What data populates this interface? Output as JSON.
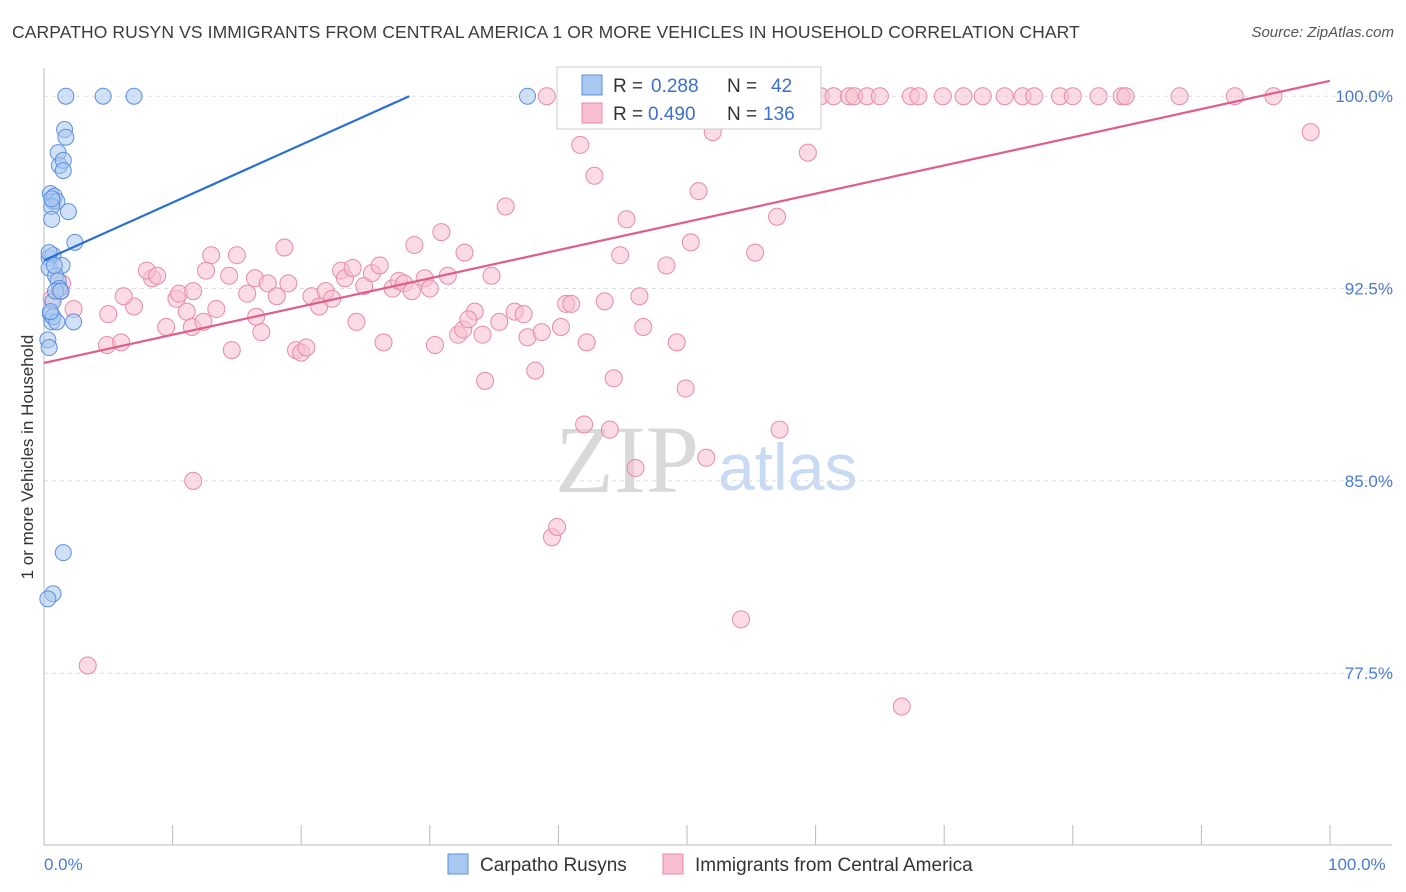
{
  "title": "CARPATHO RUSYN VS IMMIGRANTS FROM CENTRAL AMERICA 1 OR MORE VEHICLES IN HOUSEHOLD CORRELATION CHART",
  "source": "Source: ZipAtlas.com",
  "watermark": {
    "zip": "ZIP",
    "atlas": "atlas"
  },
  "colors": {
    "blue_fill": "#a9c8f0",
    "blue_stroke": "#5b8fe0",
    "blue_line": "#2a6fd6",
    "pink_fill": "#f7bfd0",
    "pink_stroke": "#e88aa8",
    "pink_line": "#e05c8c",
    "tick_text": "#4a7bd4",
    "grid": "#dddddd"
  },
  "legend_top": [
    {
      "series": "Carpatho Rusyns",
      "r_label": "R =",
      "r_value": "0.288",
      "n_label": "N =",
      "n_value": "42"
    },
    {
      "series": "Immigrants from Central America",
      "r_label": "R =",
      "r_value": "0.490",
      "n_label": "N =",
      "n_value": "136"
    }
  ],
  "chart_data": {
    "type": "scatter",
    "title": "CARPATHO RUSYN VS IMMIGRANTS FROM CENTRAL AMERICA 1 OR MORE VEHICLES IN HOUSEHOLD CORRELATION CHART",
    "xlabel": "",
    "ylabel": "1 or more Vehicles in Household",
    "xlim": [
      0,
      100
    ],
    "ylim": [
      70.8,
      101.1
    ],
    "y_ticks": [
      77.5,
      85.0,
      92.5,
      100.0
    ],
    "y_tick_labels": [
      "77.5%",
      "85.0%",
      "92.5%",
      "100.0%"
    ],
    "x_tick_labels": [
      "0.0%",
      "100.0%"
    ],
    "x_minor_ticks": [
      10,
      20,
      30,
      40,
      50,
      60,
      70,
      80,
      90,
      100
    ],
    "legend_position": "bottom",
    "series": [
      {
        "name": "Carpatho Rusyns",
        "color": "#a9c8f0",
        "trend": {
          "x": [
            0.0,
            28.4
          ],
          "y": [
            93.6,
            100.0
          ]
        },
        "points": [
          [
            1.7,
            100.0
          ],
          [
            4.6,
            100.0
          ],
          [
            7.0,
            100.0
          ],
          [
            37.6,
            100.0
          ],
          [
            1.6,
            98.7
          ],
          [
            1.7,
            98.4
          ],
          [
            1.1,
            97.8
          ],
          [
            1.2,
            97.3
          ],
          [
            1.5,
            97.5
          ],
          [
            1.5,
            97.1
          ],
          [
            0.5,
            96.2
          ],
          [
            0.7,
            95.9
          ],
          [
            0.8,
            96.1
          ],
          [
            1.0,
            95.9
          ],
          [
            0.6,
            95.7
          ],
          [
            1.9,
            95.5
          ],
          [
            0.6,
            95.2
          ],
          [
            2.4,
            94.3
          ],
          [
            0.4,
            93.7
          ],
          [
            0.7,
            93.8
          ],
          [
            0.4,
            93.3
          ],
          [
            1.4,
            93.4
          ],
          [
            0.9,
            93.0
          ],
          [
            1.1,
            92.8
          ],
          [
            1.2,
            92.5
          ],
          [
            0.7,
            92.0
          ],
          [
            0.5,
            91.5
          ],
          [
            0.6,
            91.2
          ],
          [
            0.7,
            91.4
          ],
          [
            2.3,
            91.2
          ],
          [
            1.0,
            91.2
          ],
          [
            0.3,
            90.5
          ],
          [
            0.4,
            90.2
          ],
          [
            1.5,
            82.2
          ],
          [
            0.7,
            80.6
          ],
          [
            0.3,
            80.4
          ],
          [
            0.4,
            93.9
          ],
          [
            0.9,
            92.4
          ],
          [
            0.5,
            91.6
          ],
          [
            1.3,
            92.4
          ],
          [
            0.8,
            93.4
          ],
          [
            0.6,
            96.0
          ]
        ]
      },
      {
        "name": "Immigrants from Central America",
        "color": "#f7bfd0",
        "trend": {
          "x": [
            0.0,
            100.0
          ],
          "y": [
            89.6,
            100.6
          ]
        },
        "points": [
          [
            2.3,
            91.7
          ],
          [
            1.3,
            92.4
          ],
          [
            0.6,
            92.1
          ],
          [
            4.9,
            90.3
          ],
          [
            5.0,
            91.5
          ],
          [
            1.4,
            92.7
          ],
          [
            7.0,
            91.8
          ],
          [
            6.2,
            92.2
          ],
          [
            8.4,
            92.9
          ],
          [
            6.0,
            90.4
          ],
          [
            8.0,
            93.2
          ],
          [
            8.8,
            93.0
          ],
          [
            9.5,
            91.0
          ],
          [
            10.3,
            92.1
          ],
          [
            10.5,
            92.3
          ],
          [
            11.1,
            91.6
          ],
          [
            11.5,
            91.0
          ],
          [
            11.6,
            92.4
          ],
          [
            12.4,
            91.2
          ],
          [
            12.6,
            93.2
          ],
          [
            13.0,
            93.8
          ],
          [
            13.4,
            91.7
          ],
          [
            14.4,
            93.0
          ],
          [
            14.6,
            90.1
          ],
          [
            15.0,
            93.8
          ],
          [
            15.8,
            92.3
          ],
          [
            16.4,
            92.9
          ],
          [
            16.5,
            91.4
          ],
          [
            16.9,
            90.8
          ],
          [
            17.4,
            92.7
          ],
          [
            18.1,
            92.2
          ],
          [
            18.7,
            94.1
          ],
          [
            19.0,
            92.7
          ],
          [
            19.6,
            90.1
          ],
          [
            20.0,
            90.0
          ],
          [
            20.4,
            90.2
          ],
          [
            20.8,
            92.2
          ],
          [
            21.4,
            91.8
          ],
          [
            21.9,
            92.4
          ],
          [
            22.4,
            92.1
          ],
          [
            23.1,
            93.2
          ],
          [
            23.4,
            92.9
          ],
          [
            24.0,
            93.3
          ],
          [
            24.3,
            91.2
          ],
          [
            24.9,
            92.6
          ],
          [
            25.5,
            93.1
          ],
          [
            26.1,
            93.4
          ],
          [
            26.4,
            90.4
          ],
          [
            27.1,
            92.5
          ],
          [
            27.6,
            92.8
          ],
          [
            28.0,
            92.7
          ],
          [
            28.6,
            92.4
          ],
          [
            28.8,
            94.2
          ],
          [
            29.6,
            92.9
          ],
          [
            30.0,
            92.5
          ],
          [
            30.4,
            90.3
          ],
          [
            30.9,
            94.7
          ],
          [
            31.4,
            93.0
          ],
          [
            32.2,
            90.7
          ],
          [
            32.6,
            90.9
          ],
          [
            32.7,
            93.9
          ],
          [
            33.5,
            91.6
          ],
          [
            34.1,
            90.7
          ],
          [
            34.8,
            93.0
          ],
          [
            34.3,
            88.9
          ],
          [
            35.4,
            91.2
          ],
          [
            35.9,
            95.7
          ],
          [
            36.6,
            91.6
          ],
          [
            37.3,
            91.5
          ],
          [
            37.6,
            90.6
          ],
          [
            38.2,
            89.3
          ],
          [
            38.7,
            90.8
          ],
          [
            39.1,
            100.0
          ],
          [
            39.5,
            82.8
          ],
          [
            39.9,
            83.2
          ],
          [
            40.2,
            91.0
          ],
          [
            40.6,
            91.9
          ],
          [
            41.0,
            91.9
          ],
          [
            41.3,
            100.0
          ],
          [
            41.7,
            98.1
          ],
          [
            42.0,
            87.2
          ],
          [
            42.2,
            90.4
          ],
          [
            42.6,
            100.0
          ],
          [
            42.8,
            96.9
          ],
          [
            43.1,
            100.0
          ],
          [
            43.6,
            92.0
          ],
          [
            44.0,
            87.0
          ],
          [
            44.3,
            89.0
          ],
          [
            44.8,
            93.8
          ],
          [
            45.3,
            95.2
          ],
          [
            45.7,
            100.0
          ],
          [
            46.0,
            85.5
          ],
          [
            46.3,
            92.2
          ],
          [
            46.6,
            91.0
          ],
          [
            47.2,
            100.0
          ],
          [
            48.0,
            100.0
          ],
          [
            48.4,
            93.4
          ],
          [
            49.2,
            90.4
          ],
          [
            49.9,
            88.6
          ],
          [
            50.3,
            94.3
          ],
          [
            50.9,
            96.3
          ],
          [
            51.5,
            85.9
          ],
          [
            52.0,
            98.6
          ],
          [
            53.0,
            100.0
          ],
          [
            54.2,
            79.6
          ],
          [
            55.5,
            100.0
          ],
          [
            55.3,
            93.9
          ],
          [
            57.0,
            95.3
          ],
          [
            57.2,
            87.0
          ],
          [
            59.0,
            100.0
          ],
          [
            59.4,
            97.8
          ],
          [
            60.4,
            100.0
          ],
          [
            61.4,
            100.0
          ],
          [
            62.6,
            100.0
          ],
          [
            63.0,
            100.0
          ],
          [
            64.0,
            100.0
          ],
          [
            65.0,
            100.0
          ],
          [
            66.7,
            76.2
          ],
          [
            67.4,
            100.0
          ],
          [
            68.0,
            100.0
          ],
          [
            69.9,
            100.0
          ],
          [
            71.5,
            100.0
          ],
          [
            73.0,
            100.0
          ],
          [
            74.7,
            100.0
          ],
          [
            76.1,
            100.0
          ],
          [
            77.0,
            100.0
          ],
          [
            79.0,
            100.0
          ],
          [
            80.0,
            100.0
          ],
          [
            82.0,
            100.0
          ],
          [
            83.8,
            100.0
          ],
          [
            84.1,
            100.0
          ],
          [
            88.3,
            100.0
          ],
          [
            92.6,
            100.0
          ],
          [
            95.6,
            100.0
          ],
          [
            98.5,
            98.6
          ],
          [
            11.6,
            85.0
          ],
          [
            3.4,
            77.8
          ],
          [
            33.0,
            91.3
          ]
        ]
      }
    ]
  }
}
